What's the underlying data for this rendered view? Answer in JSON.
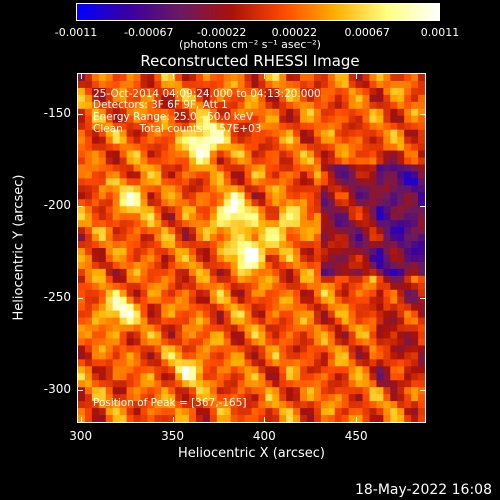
{
  "colorbar": {
    "ticks": [
      "-0.0011",
      "-0.00067",
      "-0.00022",
      "0.00022",
      "0.00067",
      "0.0011"
    ],
    "units": "(photons cm⁻² s⁻¹ asec⁻²)",
    "colormap": [
      "#0000ff",
      "#3a00a0",
      "#6a1a60",
      "#a8120a",
      "#ff4a00",
      "#ffb000",
      "#ffff80",
      "#ffffff"
    ]
  },
  "chart_data": {
    "type": "heatmap",
    "title": "Reconstructed RHESSI Image",
    "xlabel": "Heliocentric X (arcsec)",
    "ylabel": "Heliocentric Y (arcsec)",
    "xlim": [
      298,
      488
    ],
    "ylim": [
      -318,
      -128
    ],
    "xticks": [
      "300",
      "350",
      "400",
      "450"
    ],
    "yticks": [
      "-150",
      "-200",
      "-250",
      "-300"
    ],
    "zlim": [
      -0.0011,
      0.0011
    ],
    "bright_sources": [
      {
        "x": 367,
        "y": -165,
        "value": 0.0011
      },
      {
        "x": 392,
        "y": -225,
        "value": 0.00095
      },
      {
        "x": 382,
        "y": -204,
        "value": 0.0009
      },
      {
        "x": 320,
        "y": -258,
        "value": 0.0007
      },
      {
        "x": 412,
        "y": -210,
        "value": 0.0006
      },
      {
        "x": 328,
        "y": -196,
        "value": 0.0006
      },
      {
        "x": 360,
        "y": -290,
        "value": 0.0005
      }
    ],
    "negative_region": {
      "x": [
        432,
        488
      ],
      "y": [
        -240,
        -178
      ]
    },
    "annotations": [
      "25-Oct-2014 04:09:24.000 to 04:13:20.000",
      "Detectors: 3F 6F 9F, Att 1",
      "Energy Range: 25.0 - 50.0 keV",
      "Clean     Total counts: 3.57E+03"
    ],
    "peak_text": "Position of Peak = [367,-165]"
  },
  "footer_date": "18-May-2022 16:08"
}
